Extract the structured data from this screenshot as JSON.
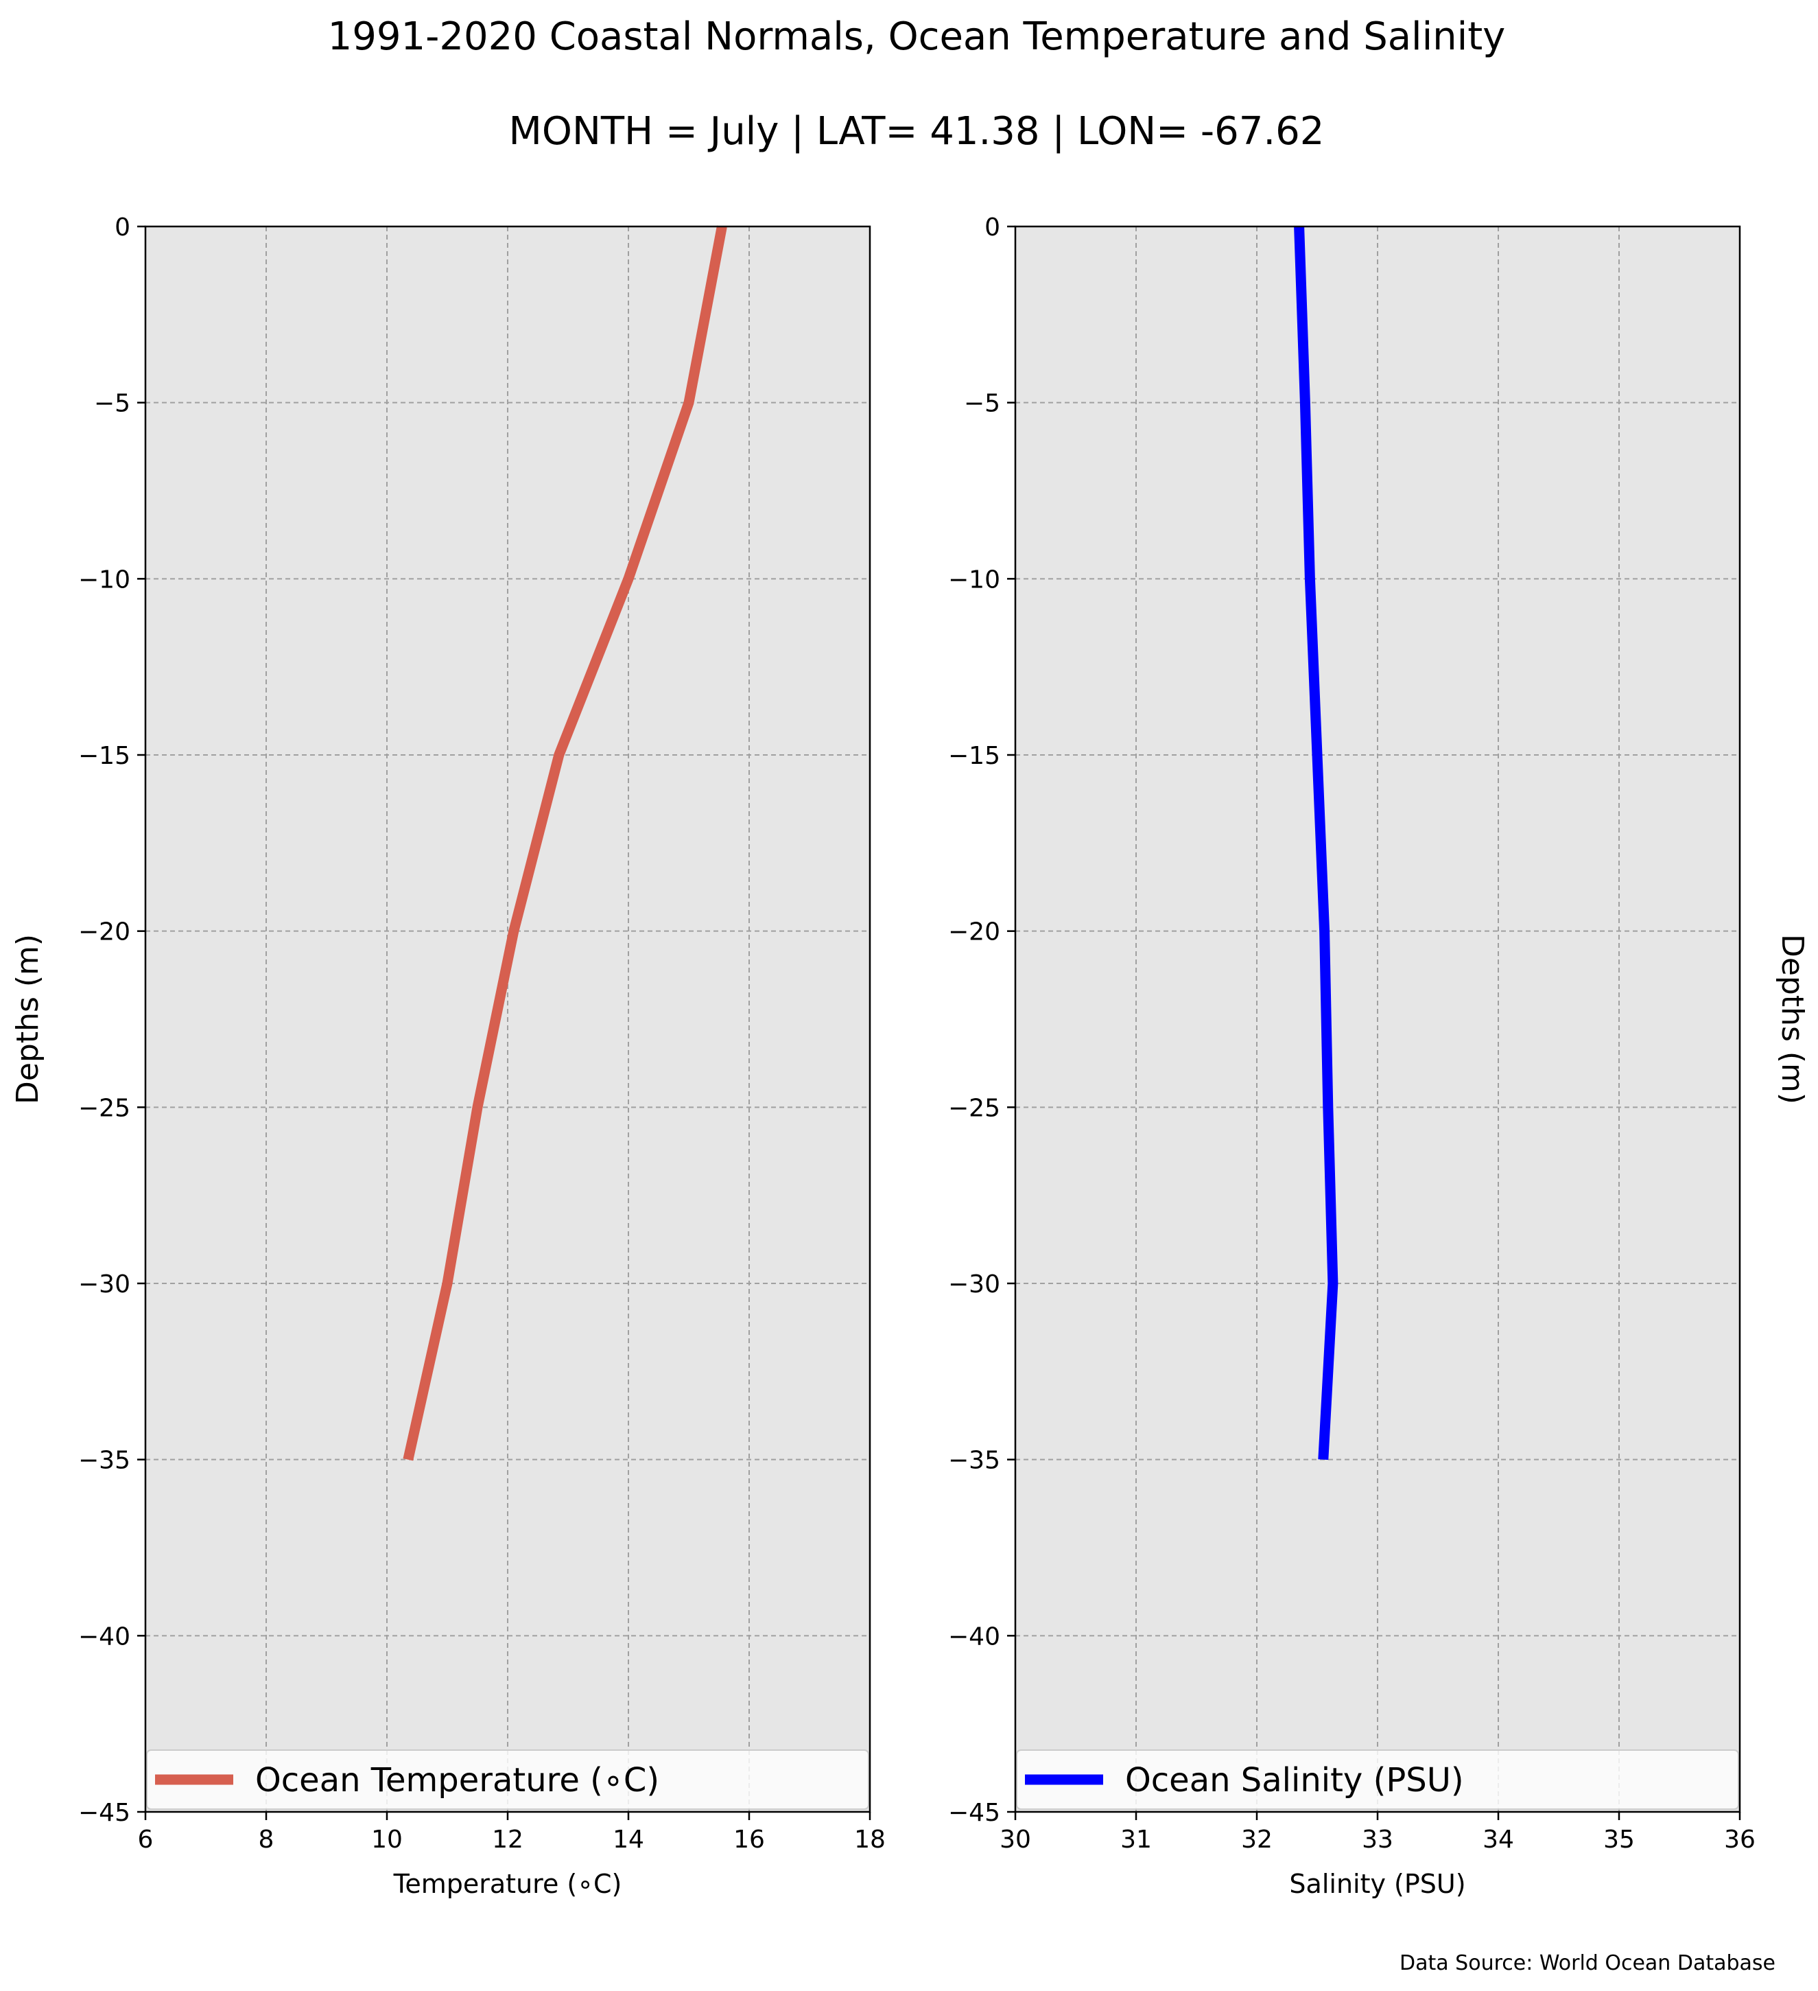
{
  "title": "1991-2020 Coastal Normals, Ocean Temperature and Salinity",
  "subtitle": "MONTH = July | LAT= 41.38 | LON= -67.62",
  "source_note": "Data Source: World Ocean Database",
  "chart_data": [
    {
      "type": "line",
      "xlabel": "Temperature (∘C)",
      "ylabel": "Depths (m)",
      "xlim": [
        6,
        18
      ],
      "ylim": [
        -45,
        0
      ],
      "xticks": [
        6,
        8,
        10,
        12,
        14,
        16,
        18
      ],
      "yticks": [
        0,
        -5,
        -10,
        -15,
        -20,
        -25,
        -30,
        -35,
        -40,
        -45
      ],
      "tick_labels_x": [
        "6",
        "8",
        "10",
        "12",
        "14",
        "16",
        "18"
      ],
      "tick_labels_y": [
        "0",
        "−5",
        "−10",
        "−15",
        "−20",
        "−25",
        "−30",
        "−35",
        "−40",
        "−45"
      ],
      "grid": true,
      "legend": "bottom",
      "series": [
        {
          "name": "Ocean Temperature (∘C)",
          "color": "#d65f4f",
          "x": [
            15.55,
            15.0,
            14.0,
            12.85,
            12.1,
            11.5,
            11.0,
            10.35
          ],
          "y": [
            0,
            -5,
            -10,
            -15,
            -20,
            -25,
            -30,
            -35
          ]
        }
      ]
    },
    {
      "type": "line",
      "xlabel": "Salinity (PSU)",
      "ylabel": "Depths (m)",
      "xlim": [
        30,
        36
      ],
      "ylim": [
        -45,
        0
      ],
      "xticks": [
        30,
        31,
        32,
        33,
        34,
        35,
        36
      ],
      "yticks": [
        0,
        -5,
        -10,
        -15,
        -20,
        -25,
        -30,
        -35,
        -40,
        -45
      ],
      "tick_labels_x": [
        "30",
        "31",
        "32",
        "33",
        "34",
        "35",
        "36"
      ],
      "tick_labels_y": [
        "0",
        "−5",
        "−10",
        "−15",
        "−20",
        "−25",
        "−30",
        "−35",
        "−40",
        "−45"
      ],
      "grid": true,
      "legend": "bottom",
      "series": [
        {
          "name": "Ocean Salinity (PSU)",
          "color": "#0000ff",
          "x": [
            32.35,
            32.4,
            32.44,
            32.5,
            32.56,
            32.59,
            32.63,
            32.55
          ],
          "y": [
            0,
            -5,
            -10,
            -15,
            -20,
            -25,
            -30,
            -35
          ]
        }
      ]
    }
  ]
}
